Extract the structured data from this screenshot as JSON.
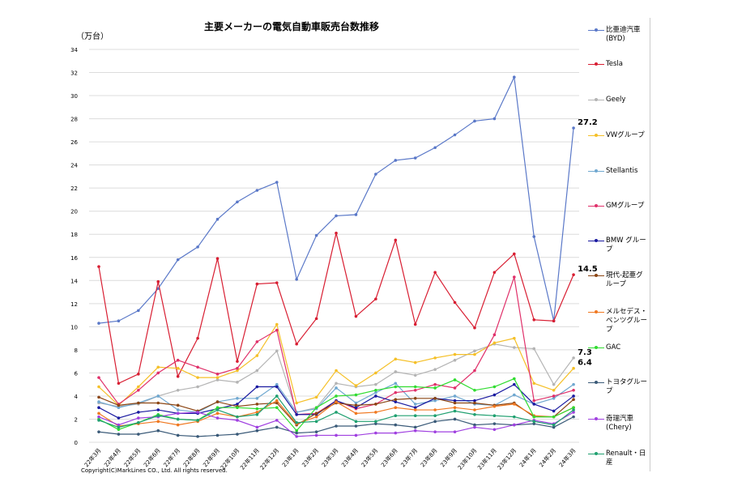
{
  "chart_data": {
    "type": "line",
    "title": "主要メーカーの電気自動車販売台数推移",
    "ylabel": "（万台）",
    "ylim": [
      0,
      34
    ],
    "yticks": [
      0,
      2,
      4,
      6,
      8,
      10,
      12,
      14,
      16,
      18,
      20,
      22,
      24,
      26,
      28,
      30,
      32,
      34
    ],
    "grid": true,
    "legend_position": "right",
    "categories": [
      "22年3月",
      "22年4月",
      "22年5月",
      "22年6月",
      "22年7月",
      "22年8月",
      "22年9月",
      "22年10月",
      "22年11月",
      "22年12月",
      "23年1月",
      "23年2月",
      "23年3月",
      "23年4月",
      "23年5月",
      "23年6月",
      "23年7月",
      "23年8月",
      "23年9月",
      "23年10月",
      "23年11月",
      "23年12月",
      "24年1月",
      "24年2月",
      "24年3月"
    ],
    "series": [
      {
        "name": "比亜迪汽車(BYD)",
        "color": "#5a78c8",
        "values": [
          10.3,
          10.5,
          11.4,
          13.3,
          15.8,
          16.9,
          19.3,
          20.8,
          21.8,
          22.5,
          14.1,
          17.9,
          19.6,
          19.7,
          23.2,
          24.4,
          24.6,
          25.5,
          26.6,
          27.8,
          28.0,
          31.6,
          17.8,
          10.5,
          27.2
        ],
        "end_label": "27.2"
      },
      {
        "name": "Tesla",
        "color": "#d81e32",
        "values": [
          15.2,
          5.1,
          5.9,
          13.9,
          5.7,
          9.0,
          15.9,
          7.0,
          13.7,
          13.8,
          8.5,
          10.7,
          18.1,
          10.9,
          12.4,
          17.5,
          10.2,
          14.7,
          12.1,
          9.9,
          14.7,
          16.3,
          10.6,
          10.5,
          14.5
        ],
        "end_label": "14.5"
      },
      {
        "name": "Geely",
        "color": "#b4b4b4",
        "values": [
          3.4,
          3.1,
          3.3,
          4.0,
          4.5,
          4.8,
          5.4,
          5.2,
          6.2,
          7.9,
          2.6,
          3.0,
          5.1,
          4.8,
          5.0,
          6.1,
          5.8,
          6.3,
          7.1,
          7.9,
          8.5,
          8.2,
          8.1,
          5.0,
          7.3
        ],
        "end_label": "7.3"
      },
      {
        "name": "VWグループ",
        "color": "#f5c028",
        "values": [
          4.8,
          3.2,
          4.8,
          6.5,
          6.4,
          5.6,
          5.6,
          6.2,
          7.5,
          10.2,
          3.4,
          3.9,
          6.2,
          4.9,
          6.0,
          7.2,
          6.9,
          7.3,
          7.6,
          7.6,
          8.6,
          9.0,
          5.1,
          4.5,
          6.4
        ],
        "end_label": "6.4"
      },
      {
        "name": "Stellantis",
        "color": "#70a8d0",
        "values": [
          3.5,
          3.0,
          3.4,
          4.0,
          2.8,
          2.6,
          3.5,
          3.8,
          3.8,
          5.0,
          2.6,
          2.9,
          4.7,
          3.4,
          4.3,
          5.1,
          3.3,
          3.6,
          4.0,
          3.3,
          3.2,
          4.1,
          3.3,
          3.8,
          5.0
        ]
      },
      {
        "name": "GMグループ",
        "color": "#e0306a",
        "values": [
          5.6,
          3.3,
          4.5,
          6.0,
          7.1,
          6.5,
          5.9,
          6.4,
          8.7,
          9.7,
          2.4,
          2.5,
          3.6,
          2.9,
          3.3,
          4.3,
          4.5,
          5.0,
          4.7,
          6.2,
          9.3,
          14.3,
          3.6,
          4.0,
          4.5
        ]
      },
      {
        "name": "BMW グループ",
        "color": "#1a1aa0",
        "values": [
          3.0,
          2.1,
          2.6,
          2.8,
          2.5,
          2.5,
          2.9,
          3.3,
          4.8,
          4.8,
          2.4,
          2.4,
          3.6,
          3.0,
          4.0,
          3.5,
          3.0,
          3.8,
          3.6,
          3.6,
          4.1,
          5.0,
          3.3,
          2.7,
          4.0
        ]
      },
      {
        "name": "現代-起亜グループ",
        "color": "#8b4513",
        "values": [
          3.9,
          3.2,
          3.4,
          3.4,
          3.2,
          2.7,
          3.5,
          3.1,
          3.3,
          3.4,
          1.5,
          2.5,
          3.4,
          3.2,
          3.3,
          3.7,
          3.8,
          3.8,
          3.4,
          3.4,
          3.2,
          3.4,
          2.2,
          2.2,
          3.7
        ]
      },
      {
        "name": "メルセデス・ベンツグループ",
        "color": "#f07820",
        "values": [
          2.5,
          1.4,
          1.6,
          1.8,
          1.5,
          1.8,
          2.5,
          2.2,
          2.6,
          3.6,
          1.6,
          2.2,
          3.5,
          2.5,
          2.6,
          3.0,
          2.8,
          2.8,
          3.0,
          2.8,
          3.1,
          3.3,
          2.3,
          2.2,
          3.0
        ]
      },
      {
        "name": "GAC",
        "color": "#30dc30",
        "values": [
          2.0,
          1.1,
          1.7,
          2.4,
          2.0,
          1.9,
          3.0,
          3.0,
          2.9,
          3.0,
          1.0,
          3.0,
          4.0,
          4.1,
          4.5,
          4.8,
          4.8,
          4.7,
          5.4,
          4.5,
          4.8,
          5.5,
          2.2,
          2.2,
          3.0
        ]
      },
      {
        "name": "トヨタグループ",
        "color": "#3a5a78",
        "values": [
          0.9,
          0.7,
          0.7,
          1.0,
          0.6,
          0.5,
          0.6,
          0.7,
          1.0,
          1.3,
          0.8,
          0.9,
          1.4,
          1.4,
          1.6,
          1.5,
          1.3,
          1.8,
          2.0,
          1.5,
          1.6,
          1.5,
          1.6,
          1.3,
          2.2
        ]
      },
      {
        "name": "奇瑞汽車(Chery)",
        "color": "#a040e0",
        "values": [
          2.2,
          1.5,
          2.1,
          2.2,
          2.5,
          2.6,
          2.1,
          1.9,
          1.3,
          1.9,
          0.5,
          0.6,
          0.6,
          0.6,
          0.8,
          0.8,
          1.0,
          0.9,
          0.9,
          1.3,
          1.1,
          1.5,
          1.9,
          1.6,
          2.6
        ]
      },
      {
        "name": "Renault・日産",
        "color": "#20a070",
        "values": [
          1.9,
          1.3,
          1.7,
          2.3,
          2.0,
          1.9,
          2.8,
          2.2,
          2.4,
          4.0,
          1.7,
          1.8,
          2.6,
          1.8,
          1.8,
          2.3,
          2.3,
          2.3,
          2.7,
          2.4,
          2.3,
          2.2,
          1.8,
          1.5,
          2.8
        ]
      }
    ]
  },
  "copyright": "Copyright(C)MarkLines CO., Ltd. All rights reserved."
}
